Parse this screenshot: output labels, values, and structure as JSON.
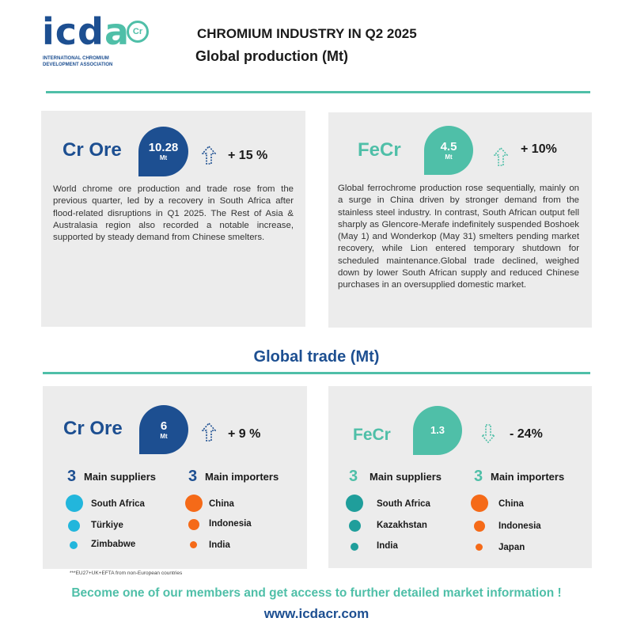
{
  "logo": {
    "mark_left": "icd",
    "mark_right": "a",
    "badge": "Cr",
    "subtitle_line1": "INTERNATIONAL CHROMIUM",
    "subtitle_line2": "DEVELOPMENT ASSOCIATION"
  },
  "header": {
    "title": "CHROMIUM INDUSTRY IN Q2 2025",
    "subtitle": "Global production (Mt)"
  },
  "production": {
    "cr_ore": {
      "title": "Cr Ore",
      "value": "10.28",
      "unit": "Mt",
      "trend": "up",
      "change": "+ 15 %",
      "text": "World chrome ore production and trade rose from the previous quarter, led by a recovery in South Africa after flood-related disruptions in Q1 2025. The Rest of Asia & Australasia region also recorded a notable increase, supported by steady demand from Chinese smelters."
    },
    "fecr": {
      "title": "FeCr",
      "value": "4.5",
      "unit": "Mt",
      "trend": "up",
      "change": "+ 10%",
      "text": "Global ferrochrome production rose sequentially, mainly on a surge in China driven by stronger demand from the stainless steel industry. In contrast, South African output fell sharply as Glencore-Merafe indefinitely suspended Boshoek (May 1) and Wonderkop (May 31) smelters pending market recovery, while Lion entered temporary shutdown for scheduled maintenance.Global trade declined, weighed down by lower South African supply and reduced Chinese purchases in an oversupplied domestic market."
    }
  },
  "trade_section_title": "Global trade (Mt)",
  "trade": {
    "cr_ore": {
      "title": "Cr Ore",
      "value": "6",
      "unit": "Mt",
      "trend": "up",
      "change": "+ 9 %",
      "suppliers_count": "3",
      "suppliers_label": "Main suppliers",
      "importers_count": "3",
      "importers_label": "Main importers",
      "suppliers": [
        "South Africa",
        "Türkiye",
        "Zimbabwe"
      ],
      "importers": [
        "China",
        "Indonesia",
        "India"
      ]
    },
    "fecr": {
      "title": "FeCr",
      "value": "1.3",
      "unit": "",
      "trend": "down",
      "change": "- 24%",
      "suppliers_count": "3",
      "suppliers_label": "Main suppliers",
      "importers_count": "3",
      "importers_label": "Main importers",
      "suppliers": [
        "South Africa",
        "Kazakhstan",
        "India"
      ],
      "importers": [
        "China",
        "Indonesia",
        "Japan"
      ]
    }
  },
  "footnote": "***EU27+UK+EFTA from non-European countries",
  "cta": "Become one of our members and get access to further detailed market information !",
  "url": "www.icdacr.com",
  "colors": {
    "brand_blue": "#1d4f91",
    "brand_teal": "#4fbfa8",
    "cr_ore_supplier_dot": "#22b6dc",
    "importer_dot": "#f56a18",
    "fecr_supplier_dot": "#1f9e9b",
    "panel_bg": "#ececec"
  }
}
